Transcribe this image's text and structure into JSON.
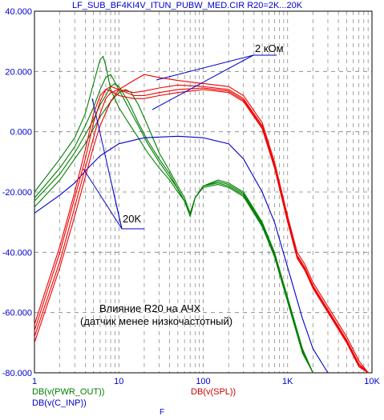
{
  "title": "LF_SUB_BF4KI4V_ITUN_PUBW_MED.CIR R20=2K...20K",
  "x_axis_label": "F",
  "legend": {
    "green": "DB(v(PWR_OUT))",
    "blue": "DB(v(C_INP))",
    "red": "DB(v(SPL))"
  },
  "annotations": {
    "top_label": "2 кОм",
    "bottom_label": "20K",
    "caption_line1": "Влияние R20 на АЧХ",
    "caption_line2": "(датчик менее низкочастотный)"
  },
  "colors": {
    "green": "#008000",
    "blue": "#0000cc",
    "red": "#ee0000",
    "grid": "#808080",
    "tick_text": "#0000cc"
  },
  "chart_data": {
    "type": "line",
    "x_scale": "log",
    "xlim": [
      1,
      10000
    ],
    "ylim": [
      -80,
      40
    ],
    "grid": true,
    "y_ticks": [
      "40.000",
      "20.000",
      "0.000",
      "-20.000",
      "-40.000",
      "-60.000",
      "-80.000"
    ],
    "y_tick_values": [
      40,
      20,
      0,
      -20,
      -40,
      -60,
      -80
    ],
    "x_ticks": [
      "1",
      "10",
      "100",
      "1K",
      "10K"
    ],
    "x_tick_values": [
      1,
      10,
      100,
      1000,
      10000
    ],
    "series": [
      {
        "name": "DB(v(PWR_OUT))",
        "color": "green",
        "curves": [
          {
            "x": [
              1,
              2,
              3,
              4,
              5,
              6,
              6.5,
              7,
              8,
              10,
              13,
              17,
              22,
              30,
              40,
              50,
              60,
              70,
              80,
              100,
              150,
              200,
              300,
              500,
              700,
              1000,
              1500,
              2000
            ],
            "y": [
              -20,
              -9,
              -2,
              6,
              16,
              24,
              25,
              22,
              14,
              8,
              3,
              -2,
              -7,
              -12,
              -16,
              -20,
              -23,
              -28,
              -22,
              -18,
              -16,
              -17,
              -20,
              -30,
              -40,
              -55,
              -72,
              -80
            ]
          },
          {
            "x": [
              1,
              2,
              3,
              4,
              5,
              6,
              7,
              8,
              10,
              13,
              17,
              22,
              30,
              40,
              50,
              60,
              70,
              80,
              100,
              150,
              200,
              300,
              500,
              700,
              1000,
              1500,
              2000
            ],
            "y": [
              -22,
              -12,
              -5,
              2,
              8,
              14,
              18,
              19,
              14,
              8,
              2,
              -4,
              -10,
              -15,
              -19,
              -23,
              -28,
              -22,
              -18,
              -16.5,
              -17.5,
              -20.5,
              -30.5,
              -40.5,
              -55.5,
              -72.5,
              -80
            ]
          },
          {
            "x": [
              1,
              2,
              3,
              4,
              5,
              6,
              7,
              8,
              9,
              10,
              13,
              17,
              22,
              30,
              40,
              50,
              60,
              70,
              80,
              100,
              150,
              200,
              300,
              500,
              700,
              1000,
              1500,
              2000
            ],
            "y": [
              -23,
              -14,
              -7,
              -1,
              4,
              9,
              12,
              15,
              16,
              15,
              10,
              3,
              -3,
              -9,
              -14,
              -19,
              -23,
              -28,
              -22,
              -18,
              -17,
              -18,
              -21,
              -31,
              -41,
              -56,
              -73,
              -80
            ]
          },
          {
            "x": [
              1,
              2,
              3,
              4,
              5,
              6,
              8,
              10,
              12,
              14,
              17,
              22,
              30,
              40,
              50,
              60,
              70,
              80,
              100,
              150,
              200,
              300,
              500,
              700,
              1000,
              1500,
              2000
            ],
            "y": [
              -25,
              -16,
              -9,
              -4,
              1,
              5,
              10,
              13,
              14,
              13,
              9,
              2,
              -7,
              -13,
              -18,
              -22,
              -27,
              -22,
              -18.5,
              -17.5,
              -18.5,
              -21.5,
              -31.5,
              -41.5,
              -56.5,
              -73.5,
              -80
            ]
          }
        ]
      },
      {
        "name": "DB(v(C_INP))",
        "color": "blue",
        "curves": [
          {
            "x": [
              1,
              2,
              3,
              4,
              6,
              10,
              20,
              50,
              100,
              200,
              300,
              500,
              700,
              1000,
              1500,
              2000,
              3000
            ],
            "y": [
              -27,
              -21,
              -17,
              -13,
              -8,
              -4,
              -2,
              -1.5,
              -2,
              -4,
              -9,
              -20,
              -30,
              -45,
              -62,
              -72,
              -80
            ]
          }
        ]
      },
      {
        "name": "DB(v(SPL))",
        "color": "red",
        "curves": [
          {
            "x": [
              1,
              2,
              3,
              4,
              5,
              6,
              8,
              10,
              15,
              20,
              30,
              50,
              100,
              200,
              300,
              500,
              700,
              1000,
              1300,
              1600,
              2000,
              3000,
              5000,
              7000,
              9000
            ],
            "y": [
              -70,
              -45,
              -28,
              -15,
              -5,
              2,
              10,
              14,
              17,
              19,
              18,
              17,
              16,
              15,
              12,
              3,
              -10,
              -28,
              -40,
              -44,
              -50,
              -58,
              -68,
              -76,
              -80
            ]
          },
          {
            "x": [
              1,
              2,
              3,
              4,
              5,
              6,
              7,
              8,
              10,
              15,
              20,
              30,
              50,
              100,
              200,
              300,
              500,
              700,
              1000,
              1300,
              1600,
              2000,
              3000,
              5000,
              7000,
              9000
            ],
            "y": [
              -68,
              -43,
              -25,
              -12,
              -2,
              6,
              11,
              13,
              14,
              13,
              13.5,
              14.5,
              15.5,
              15,
              14,
              11,
              2,
              -11,
              -29,
              -41,
              -45,
              -51,
              -59,
              -69,
              -77,
              -80
            ]
          },
          {
            "x": [
              1,
              2,
              3,
              4,
              5,
              6,
              7,
              8,
              10,
              15,
              20,
              30,
              50,
              100,
              200,
              300,
              500,
              700,
              1000,
              1300,
              1600,
              2000,
              3000,
              5000,
              7000,
              9000
            ],
            "y": [
              -66,
              -40,
              -22,
              -9,
              3,
              10,
              14,
              15,
              14,
              12,
              12,
              13,
              14,
              14.5,
              13.5,
              10.5,
              1.5,
              -11.5,
              -29.5,
              -41.5,
              -45.5,
              -51.5,
              -59.5,
              -69.5,
              -77.5,
              -80
            ]
          },
          {
            "x": [
              1,
              2,
              3,
              4,
              5,
              6,
              7,
              8,
              10,
              15,
              20,
              30,
              50,
              100,
              200,
              300,
              500,
              700,
              1000,
              1300,
              1600,
              2000,
              3000,
              5000,
              7000,
              9000
            ],
            "y": [
              -64,
              -38,
              -20,
              -6,
              6,
              12,
              14,
              13.5,
              12,
              11,
              11,
              12,
              13,
              14,
              13,
              10,
              1,
              -12,
              -30,
              -42,
              -46,
              -52,
              -60,
              -70,
              -78,
              -80
            ]
          }
        ]
      }
    ]
  }
}
